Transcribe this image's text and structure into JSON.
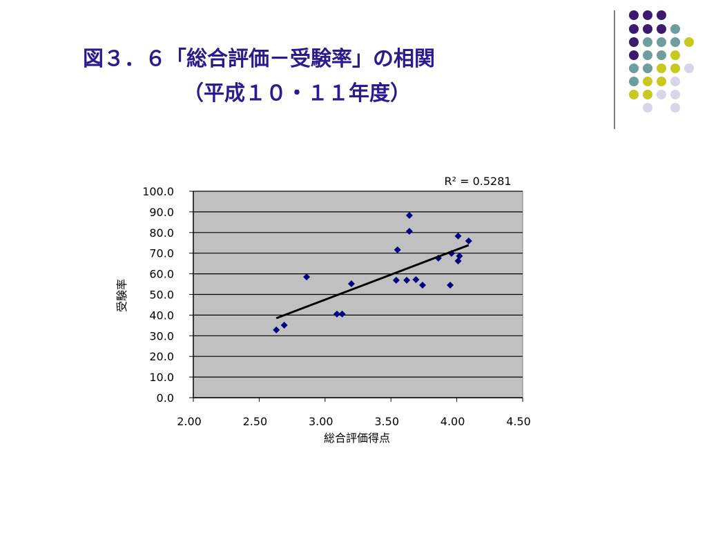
{
  "chart_data": {
    "type": "scatter",
    "title": [
      "図３．６「総合評価－受験率」の相関",
      "（平成１０・１１年度）"
    ],
    "x_label": "総合評価得点",
    "y_label": "受験率",
    "annotation": "R² = 0.5281",
    "x": [
      2.63,
      2.69,
      2.86,
      3.09,
      3.13,
      3.2,
      3.54,
      3.55,
      3.62,
      3.64,
      3.64,
      3.69,
      3.74,
      3.86,
      3.95,
      3.96,
      4.01,
      4.01,
      4.02,
      4.09
    ],
    "series": [
      {
        "color": "#000080",
        "values": [
          32.8,
          35.1,
          58.5,
          40.5,
          40.5,
          55.2,
          56.9,
          71.6,
          56.9,
          88.3,
          80.6,
          57.2,
          54.5,
          67.6,
          54.5,
          69.9,
          78.3,
          66.2,
          68.6,
          75.9
        ]
      }
    ],
    "trendline": {
      "x": [
        2.63,
        4.09
      ],
      "y": [
        38.5,
        73.9
      ],
      "color": "#000000"
    },
    "xlim": [
      2.0,
      4.5
    ],
    "xticks": [
      {
        "value": 2.0,
        "label": "2.00"
      },
      {
        "value": 2.5,
        "label": "2.50"
      },
      {
        "value": 3.0,
        "label": "3.00"
      },
      {
        "value": 3.5,
        "label": "3.50"
      },
      {
        "value": 4.0,
        "label": "4.00"
      },
      {
        "value": 4.5,
        "label": "4.50"
      }
    ],
    "ylim": [
      0,
      100
    ],
    "yticks": [
      {
        "value": 0,
        "label": "0.0"
      },
      {
        "value": 10,
        "label": "10.0"
      },
      {
        "value": 20,
        "label": "20.0"
      },
      {
        "value": 30,
        "label": "30.0"
      },
      {
        "value": 40,
        "label": "40.0"
      },
      {
        "value": 50,
        "label": "50.0"
      },
      {
        "value": 60,
        "label": "60.0"
      },
      {
        "value": 70,
        "label": "70.0"
      },
      {
        "value": 80,
        "label": "80.0"
      },
      {
        "value": 90,
        "label": "90.0"
      },
      {
        "value": 100,
        "label": "100.0"
      }
    ],
    "grid": true,
    "plot_background": "#c0c0c0"
  }
}
